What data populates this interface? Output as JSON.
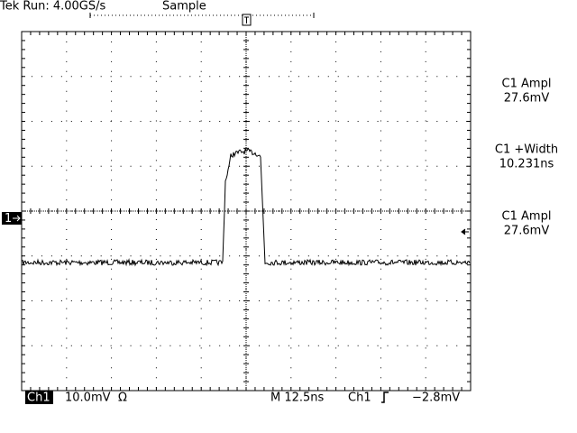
{
  "header": {
    "status": "Tek Run: 4.00GS/s",
    "mode": "Sample"
  },
  "measurements": [
    {
      "label": "C1 Ampl",
      "value": "27.6mV"
    },
    {
      "label": "C1 +Width",
      "value": "10.231ns"
    },
    {
      "label": "C1 Ampl",
      "value": "27.6mV"
    }
  ],
  "footer": {
    "channel": "Ch1",
    "scale": "10.0mV",
    "coupling": "Ω",
    "timebase": "M 12.5ns",
    "trigger_source": "Ch1",
    "trigger_level": "−2.8mV"
  },
  "channel_marker": "1"
}
